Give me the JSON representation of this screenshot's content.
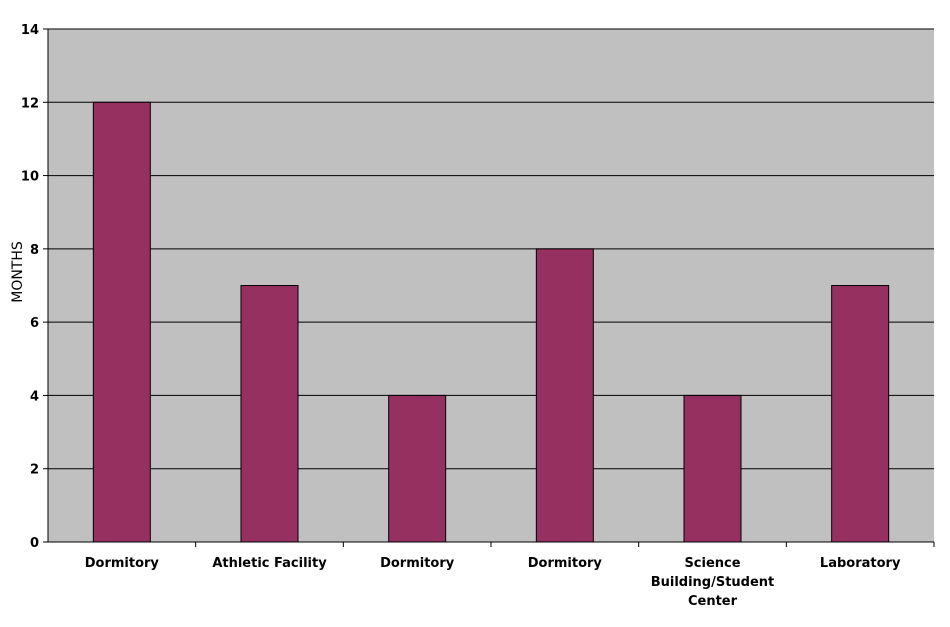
{
  "chart_data": {
    "type": "bar",
    "title": "",
    "xlabel": "",
    "ylabel": "MONTHS",
    "ylim": [
      0,
      14
    ],
    "yticks": [
      0,
      2,
      4,
      6,
      8,
      10,
      12,
      14
    ],
    "grid": true,
    "legend": "none",
    "categories": [
      "Dormitory",
      "Athletic Facility",
      "Dormitory",
      "Dormitory",
      "Science Building/Student Center",
      "Laboratory"
    ],
    "category_lines": [
      [
        "Dormitory"
      ],
      [
        "Athletic Facility"
      ],
      [
        "Dormitory"
      ],
      [
        "Dormitory"
      ],
      [
        "Science",
        "Building/Student",
        "Center"
      ],
      [
        "Laboratory"
      ]
    ],
    "values": [
      12,
      7,
      4,
      8,
      4,
      7
    ],
    "colors": {
      "bar": "#953060",
      "plot_background": "#c0c0c0",
      "gridline": "#000000"
    }
  }
}
